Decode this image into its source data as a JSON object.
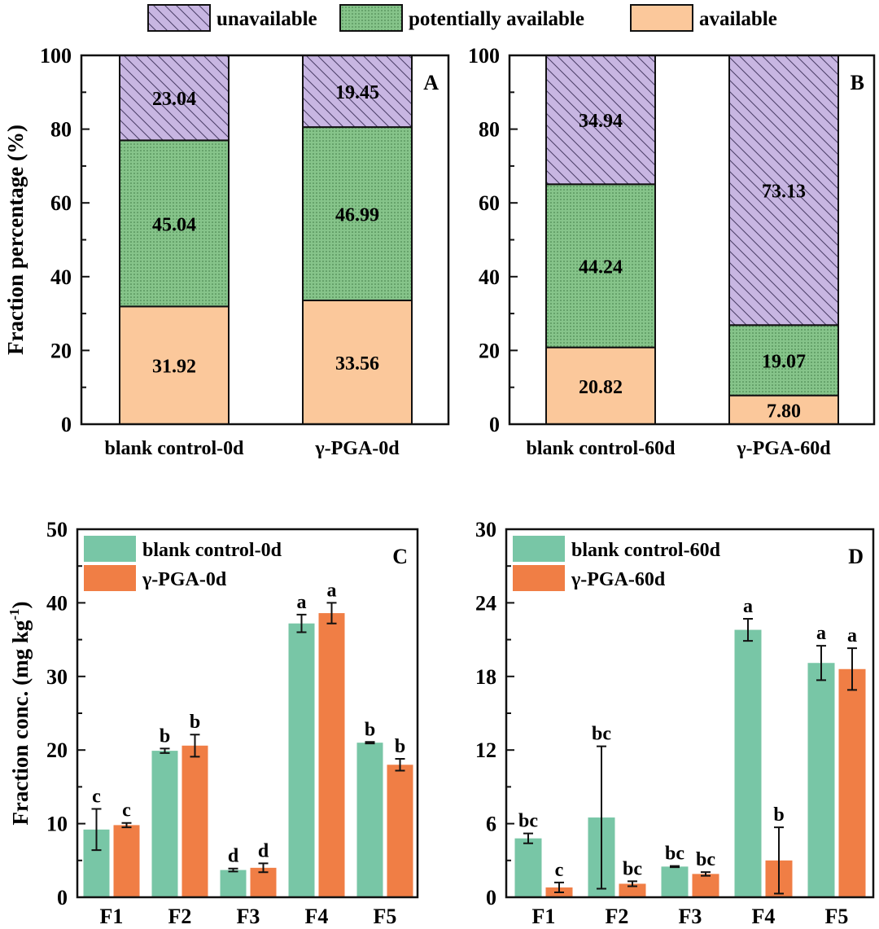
{
  "legend_top": [
    {
      "label": "unavailable",
      "color": "#c8b6e2",
      "pattern": "hatch"
    },
    {
      "label": "potentially available",
      "color": "#86c48a",
      "pattern": "dots"
    },
    {
      "label": "available",
      "color": "#fbc89b",
      "pattern": "solid"
    }
  ],
  "chart_data": [
    {
      "type": "bar",
      "stacked": true,
      "panel": "A",
      "ylabel": "Fraction percentage (%)",
      "ylim": [
        0,
        100
      ],
      "yticks": [
        0,
        20,
        40,
        60,
        80,
        100
      ],
      "categories": [
        "blank control-0d",
        "γ-PGA-0d"
      ],
      "series": [
        {
          "name": "available",
          "values": [
            31.92,
            33.56
          ],
          "labels": [
            "31.92",
            "33.56"
          ]
        },
        {
          "name": "potentially available",
          "values": [
            45.04,
            46.99
          ],
          "labels": [
            "45.04",
            "46.99"
          ]
        },
        {
          "name": "unavailable",
          "values": [
            23.04,
            19.45
          ],
          "labels": [
            "23.04",
            "19.45"
          ]
        }
      ]
    },
    {
      "type": "bar",
      "stacked": true,
      "panel": "B",
      "ylabel": "",
      "ylim": [
        0,
        100
      ],
      "yticks": [
        0,
        20,
        40,
        60,
        80,
        100
      ],
      "categories": [
        "blank control-60d",
        "γ-PGA-60d"
      ],
      "series": [
        {
          "name": "available",
          "values": [
            20.82,
            7.8
          ],
          "labels": [
            "20.82",
            "7.80"
          ]
        },
        {
          "name": "potentially available",
          "values": [
            44.24,
            19.07
          ],
          "labels": [
            "44.24",
            "19.07"
          ]
        },
        {
          "name": "unavailable",
          "values": [
            34.94,
            73.13
          ],
          "labels": [
            "34.94",
            "73.13"
          ]
        }
      ]
    },
    {
      "type": "bar",
      "panel": "C",
      "ylabel": "Fraction conc. (mg kg",
      "ylabel_sup": "-1",
      "ylabel_end": ")",
      "ylim": [
        0,
        50
      ],
      "yticks": [
        0,
        10,
        20,
        30,
        40,
        50
      ],
      "categories": [
        "F1",
        "F2",
        "F3",
        "F4",
        "F5"
      ],
      "legend_position": "top-left",
      "series": [
        {
          "name": "blank control-0d",
          "color": "#78c6a6",
          "values": [
            9.2,
            19.9,
            3.7,
            37.2,
            21.0
          ],
          "errors": [
            2.8,
            0.3,
            0.2,
            1.2,
            0.1
          ],
          "letters": [
            "c",
            "b",
            "d",
            "a",
            "b"
          ]
        },
        {
          "name": "γ-PGA-0d",
          "color": "#f07e45",
          "values": [
            9.8,
            20.6,
            4.0,
            38.6,
            18.0
          ],
          "errors": [
            0.3,
            1.5,
            0.6,
            1.4,
            0.8
          ],
          "letters": [
            "c",
            "b",
            "d",
            "a",
            "b"
          ]
        }
      ]
    },
    {
      "type": "bar",
      "panel": "D",
      "ylabel": "",
      "ylim": [
        0,
        30
      ],
      "yticks": [
        0,
        6,
        12,
        18,
        24,
        30
      ],
      "categories": [
        "F1",
        "F2",
        "F3",
        "F4",
        "F5"
      ],
      "legend_position": "top-left",
      "series": [
        {
          "name": "blank control-60d",
          "color": "#78c6a6",
          "values": [
            4.8,
            6.5,
            2.5,
            21.8,
            19.1
          ],
          "errors": [
            0.4,
            5.8,
            0.05,
            0.9,
            1.4
          ],
          "letters": [
            "bc",
            "bc",
            "bc",
            "a",
            "a"
          ]
        },
        {
          "name": "γ-PGA-60d",
          "color": "#f07e45",
          "values": [
            0.8,
            1.1,
            1.9,
            3.0,
            18.6
          ],
          "errors": [
            0.4,
            0.2,
            0.15,
            2.7,
            1.7
          ],
          "letters": [
            "c",
            "bc",
            "bc",
            "b",
            "a"
          ]
        }
      ]
    }
  ]
}
